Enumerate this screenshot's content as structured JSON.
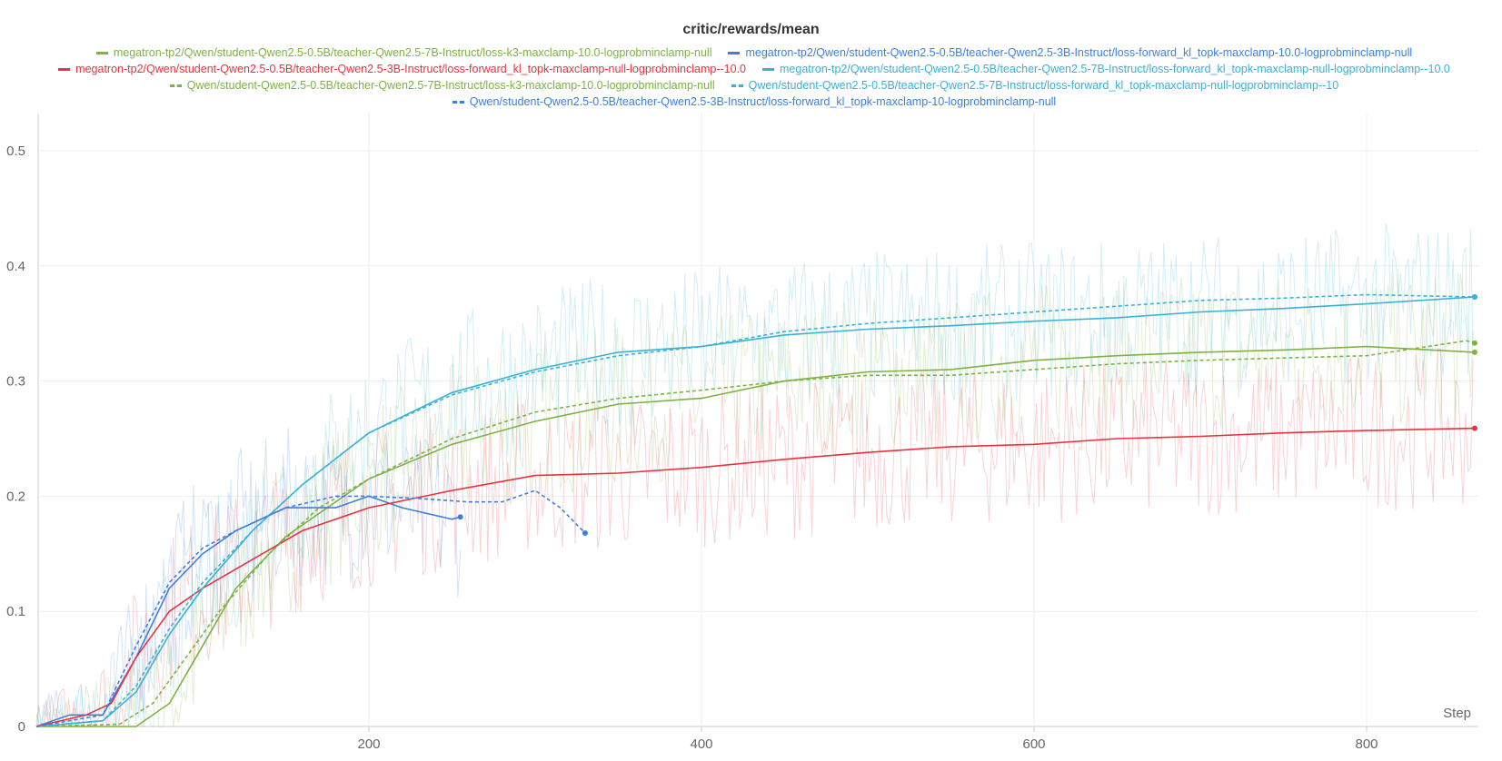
{
  "chart_data": {
    "type": "line",
    "title": "critic/rewards/mean",
    "xlabel": "Step",
    "ylabel": "",
    "xlim": [
      0,
      870
    ],
    "ylim": [
      0,
      0.53
    ],
    "x_ticks": [
      200,
      400,
      600,
      800
    ],
    "y_ticks": [
      0,
      0.1,
      0.2,
      0.3,
      0.4,
      0.5
    ],
    "y_tick_labels": [
      "0",
      "0.1",
      "0.2",
      "0.3",
      "0.4",
      "0.5"
    ],
    "grid": true,
    "legend_position": "top-center",
    "raw_noise_amplitude": 0.07,
    "series": [
      {
        "name": "megatron-tp2/Qwen/student-Qwen2.5-0.5B/teacher-Qwen2.5-7B-Instruct/loss-k3-maxclamp-10.0-logprobminclamp-null",
        "color": "#7cb342",
        "dash": false,
        "x": [
          0,
          60,
          80,
          100,
          120,
          150,
          180,
          200,
          250,
          300,
          350,
          400,
          450,
          500,
          550,
          600,
          650,
          700,
          750,
          800,
          865
        ],
        "y": [
          0,
          0,
          0.02,
          0.07,
          0.12,
          0.165,
          0.195,
          0.215,
          0.245,
          0.265,
          0.28,
          0.285,
          0.3,
          0.308,
          0.31,
          0.318,
          0.322,
          0.325,
          0.327,
          0.33,
          0.325
        ]
      },
      {
        "name": "megatron-tp2/Qwen/student-Qwen2.5-0.5B/teacher-Qwen2.5-3B-Instruct/loss-forward_kl_topk-maxclamp-10.0-logprobminclamp-null",
        "color": "#3d7fe0",
        "dash": false,
        "x": [
          0,
          20,
          40,
          60,
          80,
          100,
          120,
          150,
          180,
          200,
          220,
          250,
          255
        ],
        "y": [
          0,
          0.01,
          0.01,
          0.06,
          0.12,
          0.15,
          0.17,
          0.19,
          0.19,
          0.2,
          0.19,
          0.18,
          0.182
        ]
      },
      {
        "name": "megatron-tp2/Qwen/student-Qwen2.5-0.5B/teacher-Qwen2.5-3B-Instruct/loss-forward_kl_topk-maxclamp-null-logprobminclamp--10.0",
        "color": "#e8333f",
        "dash": false,
        "x": [
          0,
          30,
          45,
          60,
          80,
          100,
          130,
          160,
          200,
          250,
          300,
          350,
          400,
          450,
          500,
          550,
          600,
          650,
          700,
          750,
          800,
          865
        ],
        "y": [
          0,
          0.01,
          0.02,
          0.06,
          0.1,
          0.12,
          0.145,
          0.17,
          0.19,
          0.205,
          0.218,
          0.22,
          0.225,
          0.232,
          0.238,
          0.243,
          0.245,
          0.25,
          0.252,
          0.255,
          0.257,
          0.259
        ]
      },
      {
        "name": "megatron-tp2/Qwen/student-Qwen2.5-0.5B/teacher-Qwen2.5-7B-Instruct/loss-forward_kl_topk-maxclamp-null-logprobminclamp--10.0",
        "color": "#38b2d6",
        "dash": false,
        "x": [
          0,
          40,
          60,
          80,
          100,
          130,
          160,
          200,
          250,
          300,
          350,
          400,
          450,
          500,
          550,
          600,
          650,
          700,
          750,
          800,
          865
        ],
        "y": [
          0,
          0.005,
          0.03,
          0.08,
          0.12,
          0.17,
          0.21,
          0.255,
          0.29,
          0.31,
          0.325,
          0.33,
          0.34,
          0.345,
          0.348,
          0.352,
          0.355,
          0.36,
          0.363,
          0.367,
          0.373
        ]
      },
      {
        "name": "Qwen/student-Qwen2.5-0.5B/teacher-Qwen2.5-7B-Instruct/loss-k3-maxclamp-10.0-logprobminclamp-null",
        "color": "#7cb342",
        "dash": true,
        "x": [
          0,
          50,
          70,
          90,
          110,
          140,
          170,
          200,
          250,
          300,
          350,
          400,
          450,
          500,
          550,
          600,
          650,
          700,
          750,
          800,
          860,
          865
        ],
        "y": [
          0,
          0.002,
          0.02,
          0.06,
          0.1,
          0.15,
          0.19,
          0.215,
          0.25,
          0.273,
          0.285,
          0.292,
          0.3,
          0.305,
          0.305,
          0.31,
          0.315,
          0.318,
          0.32,
          0.322,
          0.335,
          0.333
        ]
      },
      {
        "name": "Qwen/student-Qwen2.5-0.5B/teacher-Qwen2.5-7B-Instruct/loss-forward_kl_topk-maxclamp-null-logprobminclamp--10",
        "color": "#38b2d6",
        "dash": true,
        "x": [
          0,
          40,
          60,
          80,
          100,
          130,
          160,
          200,
          250,
          300,
          350,
          400,
          450,
          500,
          550,
          600,
          650,
          700,
          750,
          800,
          865
        ],
        "y": [
          0,
          0.005,
          0.035,
          0.085,
          0.125,
          0.17,
          0.21,
          0.255,
          0.288,
          0.308,
          0.322,
          0.33,
          0.343,
          0.35,
          0.355,
          0.36,
          0.365,
          0.37,
          0.372,
          0.375,
          0.373
        ]
      },
      {
        "name": "Qwen/student-Qwen2.5-0.5B/teacher-Qwen2.5-3B-Instruct/loss-forward_kl_topk-maxclamp-10-logprobminclamp-null",
        "color": "#3d7fe0",
        "dash": true,
        "x": [
          0,
          40,
          60,
          80,
          100,
          120,
          150,
          180,
          200,
          230,
          260,
          280,
          300,
          315,
          330
        ],
        "y": [
          0,
          0.01,
          0.07,
          0.125,
          0.155,
          0.17,
          0.19,
          0.2,
          0.2,
          0.198,
          0.195,
          0.195,
          0.205,
          0.19,
          0.168
        ]
      }
    ]
  }
}
